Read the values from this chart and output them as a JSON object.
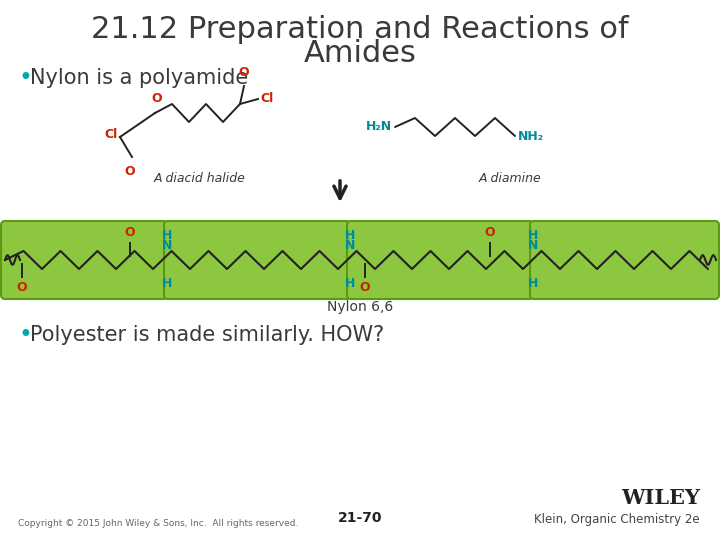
{
  "title_line1": "21.12 Preparation and Reactions of",
  "title_line2": "Amides",
  "title_color": "#3a3a3a",
  "title_fontsize": 22,
  "bullet1_text": " Nylon is a polyamide",
  "bullet1_color": "#3a3a3a",
  "bullet1_dot_color": "#00AAAA",
  "bullet1_fontsize": 15,
  "bullet2_text": " Polyester is made similarly. HOW?",
  "bullet2_color": "#3a3a3a",
  "bullet2_dot_color": "#00AAAA",
  "bullet2_fontsize": 15,
  "diacid_label": "A diacid halide",
  "diamine_label": "A diamine",
  "nylon_label": "Nylon 6,6",
  "label_color": "#3a3a3a",
  "label_fontsize": 9,
  "red_color": "#CC2200",
  "teal_color": "#008B9A",
  "dark_color": "#222222",
  "green_box_color": "#8DC63F",
  "green_box_edge": "#5a9a10",
  "copyright_text": "Copyright © 2015 John Wiley & Sons, Inc.  All rights reserved.",
  "page_num": "21-70",
  "wiley_text": "WILEY",
  "klein_text": "Klein, Organic Chemistry 2e",
  "background_color": "#ffffff"
}
